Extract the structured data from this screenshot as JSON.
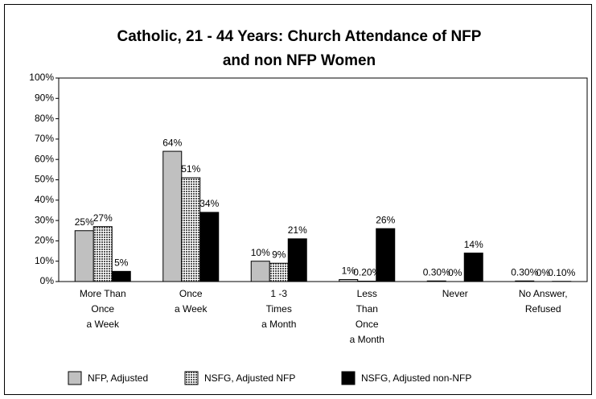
{
  "chart_data": {
    "type": "bar",
    "title": "Catholic, 21 - 44 Years: Church Attendance of NFP",
    "subtitle": "and non NFP Women",
    "categories": [
      "More Than\nOnce\na Week",
      "Once\na Week",
      "1 -3\nTimes\na Month",
      "Less\nThan\nOnce\na Month",
      "Never",
      "No Answer,\nRefused"
    ],
    "series": [
      {
        "name": "NFP, Adjusted",
        "color": "#c0c0c0",
        "values": [
          25,
          64,
          10,
          1,
          0.3,
          0.3
        ],
        "value_labels": [
          "25%",
          "64%",
          "10%",
          "1%",
          "0.30%",
          "0.30%"
        ]
      },
      {
        "name": "NSFG, Adjusted NFP",
        "color": "#808080",
        "values": [
          27,
          51,
          9,
          0.2,
          0,
          0
        ],
        "value_labels": [
          "27%",
          "51%",
          "9%",
          "0.20%",
          "0%",
          "0%"
        ]
      },
      {
        "name": "NSFG, Adjusted non-NFP",
        "color": "#000000",
        "values": [
          5,
          34,
          21,
          26,
          14,
          0.1
        ],
        "value_labels": [
          "5%",
          "34%",
          "21%",
          "26%",
          "14%",
          "0.10%"
        ]
      }
    ],
    "ylim": [
      0,
      100
    ],
    "yticks": [
      {
        "value": 0,
        "label": "0%"
      },
      {
        "value": 10,
        "label": "10%"
      },
      {
        "value": 20,
        "label": "20%"
      },
      {
        "value": 30,
        "label": "30%"
      },
      {
        "value": 40,
        "label": "40%"
      },
      {
        "value": 50,
        "label": "50%"
      },
      {
        "value": 60,
        "label": "60%"
      },
      {
        "value": 70,
        "label": "70%"
      },
      {
        "value": 80,
        "label": "80%"
      },
      {
        "value": 90,
        "label": "90%"
      },
      {
        "value": 100,
        "label": "100%"
      }
    ],
    "grid": false,
    "legend": "bottom"
  }
}
